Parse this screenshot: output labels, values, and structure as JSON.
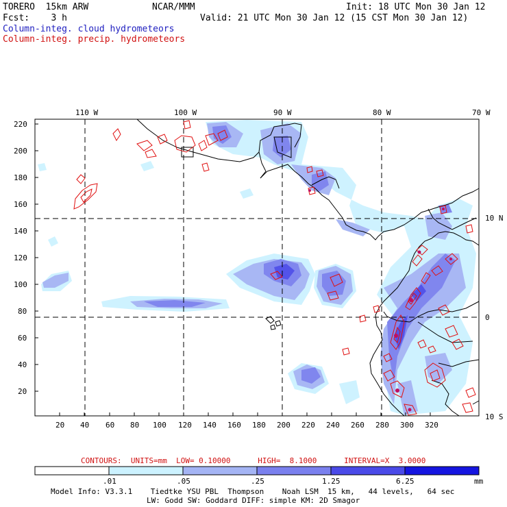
{
  "header": {
    "model": "TORERO  15km ARW",
    "org": "NCAR/MMM",
    "init": "Init: 18 UTC Mon 30 Jan 12",
    "fcst": "Fcst:    3 h",
    "valid": "Valid: 21 UTC Mon 30 Jan 12 (15 CST Mon 30 Jan 12)",
    "field1": "Column-integ. cloud hydrometeors",
    "field2": "Column-integ. precip. hydrometeors"
  },
  "map": {
    "top_lon_labels": [
      "110 W",
      "100 W",
      "90 W",
      "80 W",
      "70 W"
    ],
    "right_lat_labels": [
      "10 N",
      "0",
      "10 S"
    ],
    "y_ticks": [
      "20",
      "40",
      "60",
      "80",
      "100",
      "120",
      "140",
      "160",
      "180",
      "200",
      "220"
    ],
    "x_ticks": [
      "20",
      "40",
      "60",
      "80",
      "100",
      "120",
      "140",
      "160",
      "180",
      "200",
      "220",
      "240",
      "260",
      "280",
      "300",
      "320"
    ]
  },
  "contour_info": {
    "label": "CONTOURS:  UNITS=mm  LOW= 0.10000      HIGH=  8.1000      INTERVAL=X  3.0000"
  },
  "colorbar": {
    "tick_labels": [
      ".01",
      ".05",
      ".25",
      "1.25",
      "6.25"
    ],
    "units": "mm",
    "colors": [
      "#ffffff",
      "#ccf2ff",
      "#a4b4f4",
      "#7a80ee",
      "#4a4ae8",
      "#1515e0"
    ]
  },
  "footer": {
    "line1": "Model Info: V3.3.1    Tiedtke YSU PBL  Thompson    Noah LSM  15 km,   44 levels,   64 sec",
    "line2": "LW: Godd SW: Goddard DIFF: simple KM: 2D Smagor"
  }
}
